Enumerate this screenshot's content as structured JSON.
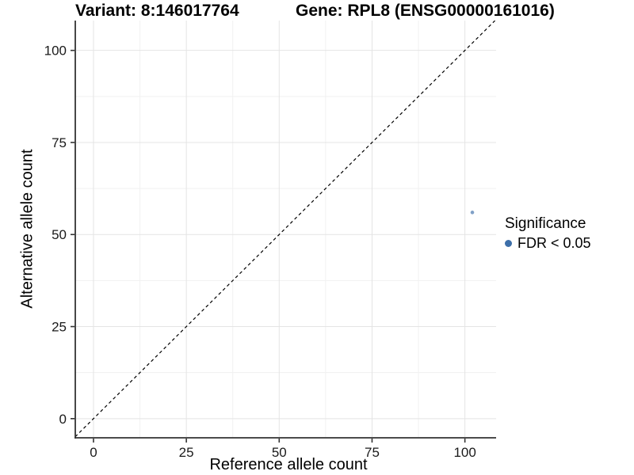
{
  "title": {
    "variant": "Variant: 8:146017764",
    "gene": "Gene: RPL8 (ENSG00000161016)"
  },
  "legend": {
    "title": "Significance",
    "items": [
      {
        "label": "FDR < 0.05",
        "color": "#3d6fa9"
      }
    ]
  },
  "chart_data": {
    "type": "scatter",
    "title": "Variant: 8:146017764   Gene: RPL8 (ENSG00000161016)",
    "xlabel": "Reference allele count",
    "ylabel": "Alternative allele count",
    "x_ticks": [
      0,
      25,
      50,
      75,
      100
    ],
    "y_ticks": [
      0,
      25,
      50,
      75,
      100
    ],
    "x_minor_ticks": [
      12.5,
      37.5,
      62.5,
      87.5
    ],
    "y_minor_ticks": [
      12.5,
      37.5,
      62.5,
      87.5
    ],
    "xlim": [
      -4.9,
      108.4
    ],
    "ylim": [
      -5.2,
      108.1
    ],
    "grid": "major and minor, light gray",
    "legend_position": "right",
    "series": [
      {
        "name": "FDR < 0.05",
        "color": "#3d6fa9",
        "points": [
          {
            "x": 102,
            "y": 56
          }
        ]
      }
    ],
    "identity_line": {
      "slope": 1,
      "intercept": 0,
      "style": "dashed",
      "color": "#000000"
    }
  },
  "colors": {
    "background": "#ffffff",
    "accent_blue": "#3d6fa9",
    "axis_line": "#333333",
    "grid_major": "#e4e4e4",
    "grid_minor": "#f1f1f1",
    "tick_text": "#1a1a1a"
  }
}
